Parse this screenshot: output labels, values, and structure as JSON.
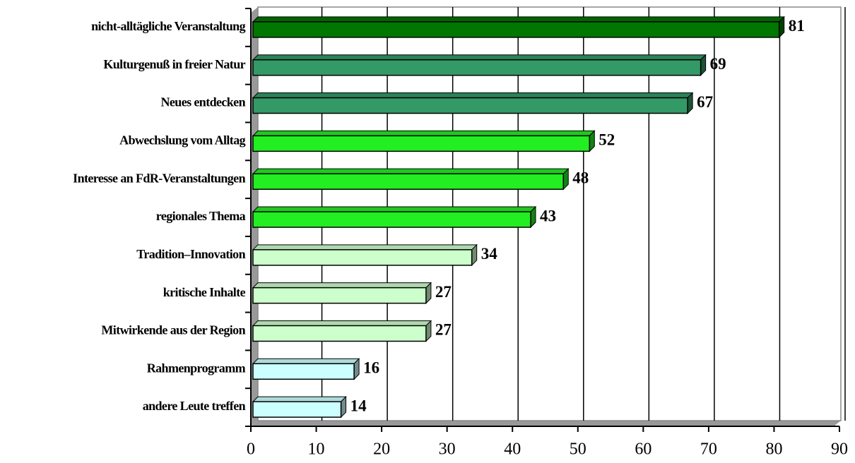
{
  "chart_data": {
    "type": "bar",
    "orientation": "horizontal",
    "categories": [
      "nicht-alltägliche Veranstaltung",
      "Kulturgenuß in freier Natur",
      "Neues entdecken",
      "Abwechslung vom Alltag",
      "Interesse an FdR-Veranstaltungen",
      "regionales Thema",
      "Tradition–Innovation",
      "kritische Inhalte",
      "Mitwirkende aus der Region",
      "Rahmenprogramm",
      "andere Leute treffen"
    ],
    "values": [
      81,
      69,
      67,
      52,
      48,
      43,
      34,
      27,
      27,
      16,
      14
    ],
    "colors": [
      "#007700",
      "#339966",
      "#339966",
      "#22ee22",
      "#22ee22",
      "#22ee22",
      "#ccffcc",
      "#ccffcc",
      "#ccffcc",
      "#ccffff",
      "#ccffff"
    ],
    "xlim": [
      0,
      90
    ],
    "xticks": [
      0,
      10,
      20,
      30,
      40,
      50,
      60,
      70,
      80,
      90
    ],
    "grid": true
  }
}
